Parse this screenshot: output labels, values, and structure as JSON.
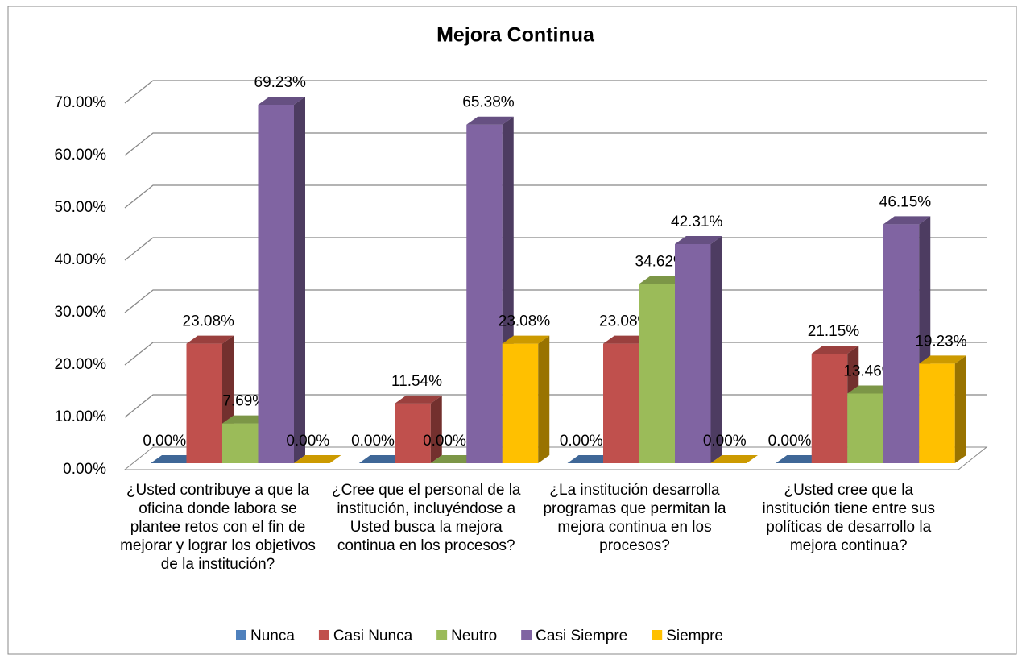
{
  "chart_data": {
    "type": "bar3d",
    "title": "Mejora Continua",
    "categories": [
      "¿Usted contribuye a que la oficina donde labora se plantee retos con el fin de mejorar y lograr los objetivos de la institución?",
      "¿Cree que el personal de la institución, incluyéndose a Usted busca la mejora continua en los procesos?",
      "¿La institución desarrolla programas que permitan la mejora continua en los procesos?",
      "¿Usted cree que la institución tiene entre sus políticas de desarrollo la mejora continua?"
    ],
    "series": [
      {
        "name": "Nunca",
        "color": "#4f81bd",
        "values": [
          0,
          0,
          0,
          0
        ],
        "value_labels": [
          "0.00%",
          "0.00%",
          "0.00%",
          "0.00%"
        ]
      },
      {
        "name": "Casi Nunca",
        "color": "#c0504d",
        "values": [
          23.08,
          11.54,
          23.08,
          21.15
        ],
        "value_labels": [
          "23.08%",
          "11.54%",
          "23.08%",
          "21.15%"
        ]
      },
      {
        "name": "Neutro",
        "color": "#9bbb59",
        "values": [
          7.69,
          0,
          34.62,
          13.46
        ],
        "value_labels": [
          "7.69%",
          "0.00%",
          "34.62%",
          "13.46%"
        ]
      },
      {
        "name": "Casi Siempre",
        "color": "#8064a2",
        "values": [
          69.23,
          65.38,
          42.31,
          46.15
        ],
        "value_labels": [
          "69.23%",
          "65.38%",
          "42.31%",
          "46.15%"
        ]
      },
      {
        "name": "Siempre",
        "color": "#ffc000",
        "values": [
          0,
          23.08,
          0,
          19.23
        ],
        "value_labels": [
          "0.00%",
          "23.08%",
          "0.00%",
          "19.23%"
        ]
      }
    ],
    "ylim": [
      0,
      70
    ],
    "yticks": [
      {
        "value": 0,
        "label": "0.00%"
      },
      {
        "value": 10,
        "label": "10.00%"
      },
      {
        "value": 20,
        "label": "20.00%"
      },
      {
        "value": 30,
        "label": "30.00%"
      },
      {
        "value": 40,
        "label": "40.00%"
      },
      {
        "value": 50,
        "label": "50.00%"
      },
      {
        "value": 60,
        "label": "60.00%"
      },
      {
        "value": 70,
        "label": "70.00%"
      }
    ],
    "grid": true,
    "legend": "bottom"
  }
}
